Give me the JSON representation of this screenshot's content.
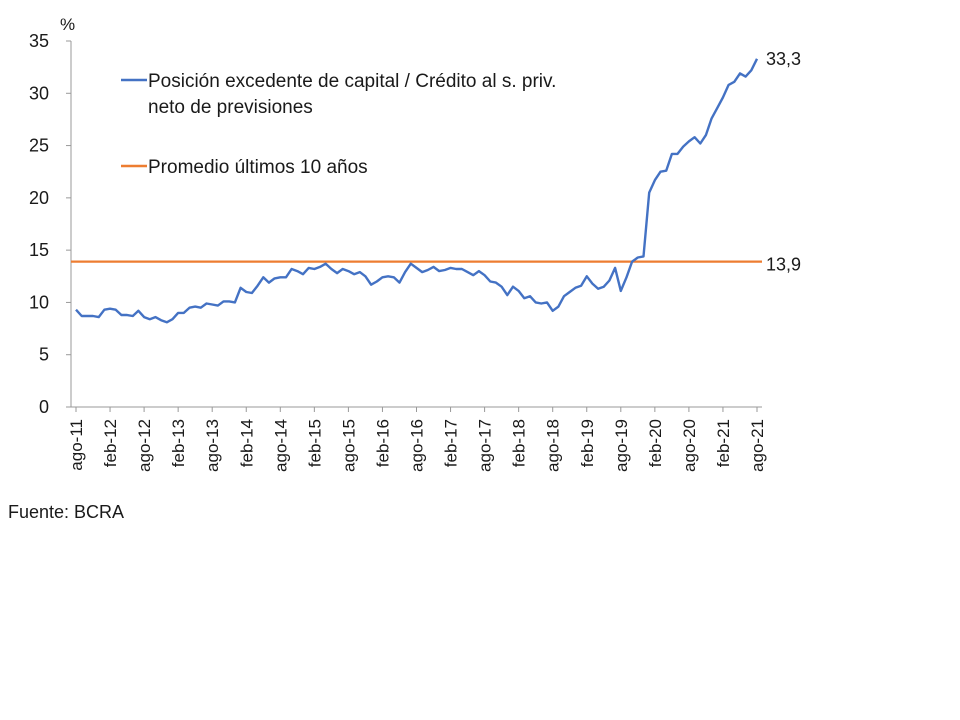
{
  "chart_data": {
    "type": "line",
    "ylabel": "%",
    "ylim": [
      0,
      35
    ],
    "yticks": [
      0,
      5,
      10,
      15,
      20,
      25,
      30,
      35
    ],
    "x_tick_labels": [
      "ago-11",
      "feb-12",
      "ago-12",
      "feb-13",
      "ago-13",
      "feb-14",
      "ago-14",
      "feb-15",
      "ago-15",
      "feb-16",
      "ago-16",
      "feb-17",
      "ago-17",
      "feb-18",
      "ago-18",
      "feb-19",
      "ago-19",
      "feb-20",
      "ago-20",
      "feb-21",
      "ago-21"
    ],
    "x_start": "2011-08",
    "x_end": "2021-08",
    "grid": false,
    "legend_position": "top-left",
    "series": [
      {
        "name": "Posición excedente de capital / Crédito al s. priv. neto de previsiones",
        "color": "#4472c4",
        "values": [
          9.3,
          8.7,
          8.7,
          8.7,
          8.6,
          9.3,
          9.4,
          9.3,
          8.8,
          8.8,
          8.7,
          9.2,
          8.6,
          8.4,
          8.6,
          8.3,
          8.1,
          8.4,
          9.0,
          9.0,
          9.5,
          9.6,
          9.5,
          9.9,
          9.8,
          9.7,
          10.1,
          10.1,
          10.0,
          11.4,
          11.0,
          10.9,
          11.6,
          12.4,
          11.9,
          12.3,
          12.4,
          12.4,
          13.2,
          13.0,
          12.7,
          13.3,
          13.2,
          13.4,
          13.7,
          13.2,
          12.8,
          13.2,
          13.0,
          12.7,
          12.9,
          12.5,
          11.7,
          12.0,
          12.4,
          12.5,
          12.4,
          11.9,
          12.9,
          13.7,
          13.3,
          12.9,
          13.1,
          13.4,
          13.0,
          13.1,
          13.3,
          13.2,
          13.2,
          12.9,
          12.6,
          13.0,
          12.6,
          12.0,
          11.9,
          11.5,
          10.7,
          11.5,
          11.1,
          10.4,
          10.6,
          10.0,
          9.9,
          10.0,
          9.2,
          9.6,
          10.6,
          11.0,
          11.4,
          11.6,
          12.5,
          11.8,
          11.3,
          11.5,
          12.1,
          13.3,
          11.1,
          12.4,
          13.9,
          14.3,
          14.4,
          20.5,
          21.7,
          22.5,
          22.6,
          24.2,
          24.2,
          24.9,
          25.4,
          25.8,
          25.2,
          26.0,
          27.6,
          28.6,
          29.6,
          30.8,
          31.1,
          31.9,
          31.6,
          32.2,
          33.3
        ]
      },
      {
        "name": "Promedio últimos 10 años",
        "color": "#ed7d31",
        "values": [
          13.9,
          13.9
        ]
      }
    ],
    "end_labels": [
      "33,3",
      "13,9"
    ]
  },
  "source_text": "Fuente: BCRA"
}
